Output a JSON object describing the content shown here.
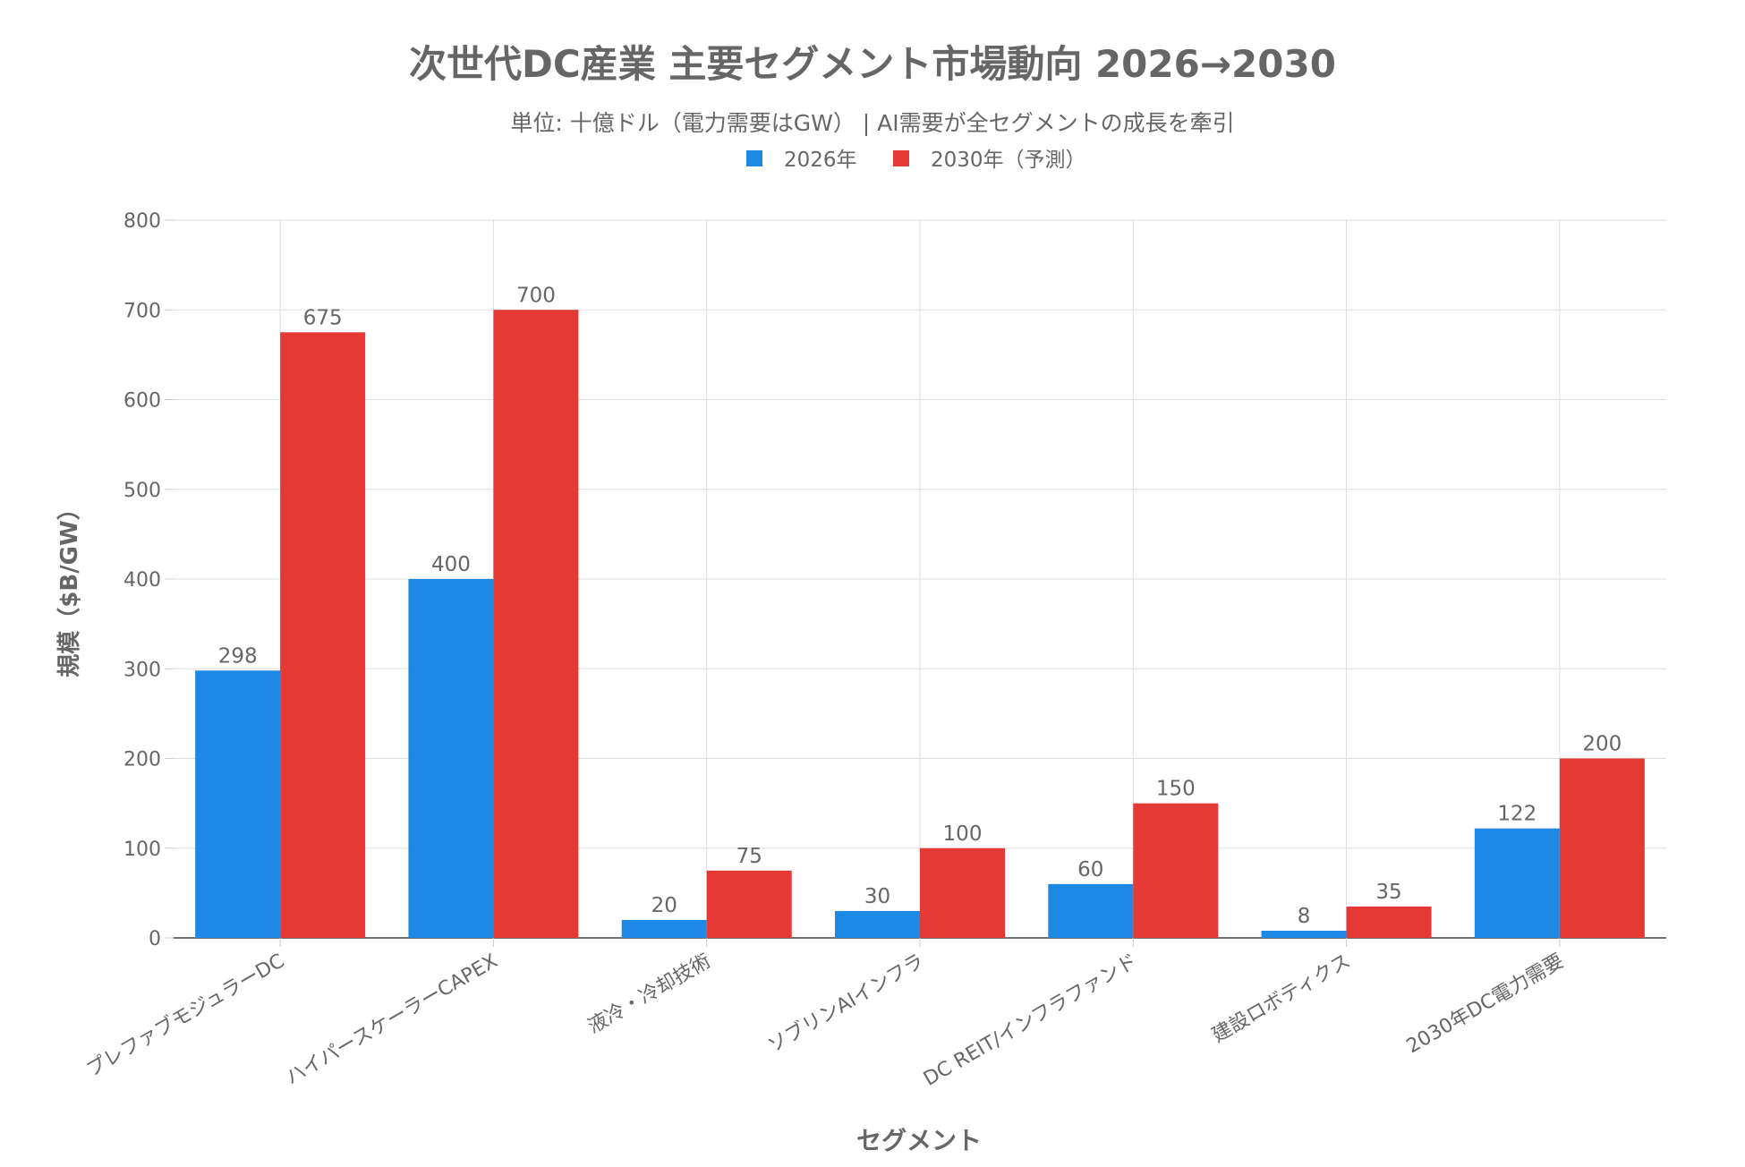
{
  "chart_data": {
    "type": "bar",
    "title": "次世代DC産業 主要セグメント市場動向 2026→2030",
    "subtitle": "単位: 十億ドル（電力需要はGW） | AI需要が全セグメントの成長を牽引",
    "xlabel": "セグメント",
    "ylabel": "規模（$B/GW）",
    "ylim": [
      0,
      800
    ],
    "yticks": [
      0,
      100,
      200,
      300,
      400,
      500,
      600,
      700,
      800
    ],
    "grid": true,
    "legend_position": "top-center",
    "categories": [
      "プレファブモジュラーDC",
      "ハイパースケーラーCAPEX",
      "液冷・冷却技術",
      "ソブリンAIインフラ",
      "DC REIT/インフラファンド",
      "建設ロボティクス",
      "2030年DC電力需要"
    ],
    "series": [
      {
        "name": "2026年",
        "color": "#1e88e5",
        "values": [
          298,
          400,
          20,
          30,
          60,
          8,
          122
        ]
      },
      {
        "name": "2030年（予測）",
        "color": "#e53935",
        "values": [
          675,
          700,
          75,
          100,
          150,
          35,
          200
        ]
      }
    ]
  }
}
